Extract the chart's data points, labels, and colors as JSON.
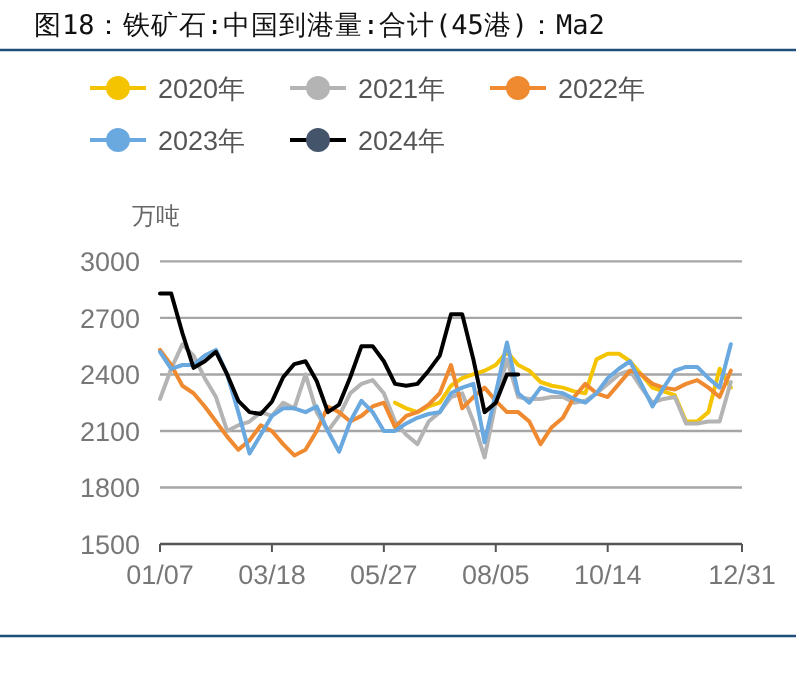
{
  "chart_data": {
    "type": "line",
    "title": "图18：铁矿石:中国到港量:合计(45港)：Ma2",
    "ylabel": "万吨",
    "categories": [
      "01/07",
      null,
      null,
      null,
      null,
      null,
      null,
      null,
      null,
      null,
      "03/18",
      null,
      null,
      null,
      null,
      null,
      null,
      null,
      null,
      null,
      "05/27",
      null,
      null,
      null,
      null,
      null,
      null,
      null,
      null,
      null,
      "08/05",
      null,
      null,
      null,
      null,
      null,
      null,
      null,
      null,
      null,
      "10/14",
      null,
      null,
      null,
      null,
      null,
      null,
      null,
      null,
      null,
      null,
      null,
      "12/31"
    ],
    "ylim": [
      1500,
      3000
    ],
    "yticks": [
      1500,
      1800,
      2100,
      2400,
      2700,
      3000
    ],
    "grid": "y",
    "legend": "top",
    "line_style": "solid",
    "series": [
      {
        "name": "2020年",
        "color": "#f5c400",
        "values": [
          null,
          null,
          null,
          null,
          null,
          null,
          null,
          null,
          null,
          null,
          null,
          null,
          null,
          null,
          null,
          null,
          null,
          null,
          null,
          null,
          null,
          2250,
          2220,
          2200,
          2230,
          2250,
          2340,
          2380,
          2400,
          2420,
          2450,
          2520,
          2450,
          2420,
          2360,
          2340,
          2330,
          2310,
          2300,
          2480,
          2510,
          2510,
          2470,
          2400,
          2330,
          2310,
          2290,
          2150,
          2150,
          2200,
          2430,
          2330,
          null
        ]
      },
      {
        "name": "2021年",
        "color": "#b4b4b4",
        "values": [
          2270,
          2430,
          2560,
          2500,
          2380,
          2280,
          2100,
          2130,
          2150,
          2200,
          2180,
          2250,
          2220,
          2400,
          2200,
          2100,
          2180,
          2300,
          2350,
          2370,
          2300,
          2150,
          2080,
          2030,
          2150,
          2200,
          2280,
          2300,
          2150,
          1960,
          2250,
          2480,
          2280,
          2270,
          2270,
          2280,
          2280,
          2250,
          2260,
          2300,
          2350,
          2400,
          2420,
          2330,
          2250,
          2270,
          2280,
          2140,
          2140,
          2150,
          2150,
          2360,
          null
        ]
      },
      {
        "name": "2022年",
        "color": "#f08a30",
        "values": [
          2530,
          2450,
          2340,
          2300,
          2230,
          2150,
          2070,
          2000,
          2050,
          2130,
          2100,
          2030,
          1970,
          2000,
          2100,
          2230,
          2200,
          2150,
          2180,
          2230,
          2250,
          2120,
          2180,
          2200,
          2240,
          2300,
          2450,
          2220,
          2280,
          2330,
          2260,
          2200,
          2200,
          2150,
          2030,
          2120,
          2170,
          2280,
          2350,
          2300,
          2280,
          2350,
          2420,
          2400,
          2350,
          2330,
          2320,
          2350,
          2370,
          2330,
          2280,
          2420,
          null
        ]
      },
      {
        "name": "2023年",
        "color": "#6aa8e0",
        "values": [
          2520,
          2430,
          2450,
          2450,
          2500,
          2530,
          2400,
          2200,
          1980,
          2080,
          2180,
          2220,
          2220,
          2200,
          2230,
          2100,
          1990,
          2150,
          2260,
          2200,
          2100,
          2100,
          2140,
          2170,
          2190,
          2200,
          2300,
          2330,
          2350,
          2040,
          2300,
          2570,
          2300,
          2250,
          2330,
          2310,
          2300,
          2270,
          2250,
          2300,
          2380,
          2430,
          2470,
          2350,
          2230,
          2330,
          2420,
          2440,
          2440,
          2380,
          2330,
          2560,
          null
        ]
      },
      {
        "name": "2024年",
        "color": "#000000",
        "values": [
          2830,
          2830,
          2620,
          2435,
          2470,
          2520,
          2400,
          2260,
          2200,
          2190,
          2255,
          2385,
          2455,
          2470,
          2365,
          2200,
          2240,
          2385,
          2550,
          2550,
          2470,
          2350,
          2340,
          2350,
          2420,
          2500,
          2720,
          2720,
          2480,
          2200,
          2250,
          2400,
          2400,
          null,
          null,
          null,
          null,
          null,
          null,
          null,
          null,
          null,
          null,
          null,
          null,
          null,
          null,
          null,
          null,
          null,
          null,
          null,
          null
        ]
      }
    ]
  }
}
